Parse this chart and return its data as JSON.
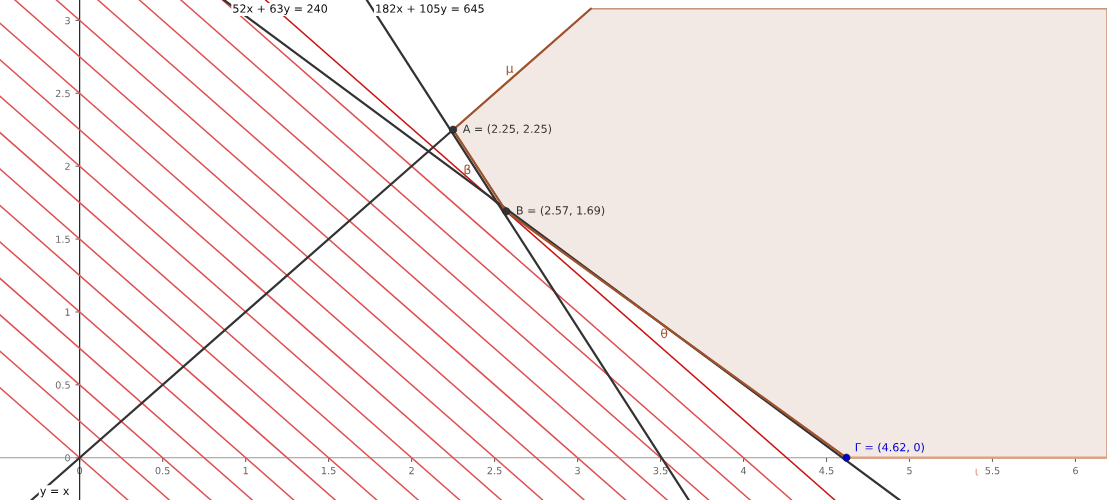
{
  "chart_data": {
    "type": "line",
    "xlim": [
      -0.48,
      6.19
    ],
    "ylim": [
      -0.29,
      3.14
    ],
    "xticks": [
      0,
      0.5,
      1,
      1.5,
      2,
      2.5,
      3,
      3.5,
      4,
      4.5,
      5,
      5.5,
      6
    ],
    "yticks": [
      0,
      0.5,
      1,
      1.5,
      2,
      2.5,
      3
    ],
    "grid": false,
    "legend": false,
    "marker": "none",
    "line_style": "solid",
    "series": [
      {
        "color": "#e05050",
        "x": [
          -0.48,
          0.29
        ],
        "values": [
          0.48,
          -0.29
        ]
      },
      {
        "color": "#e05050",
        "x": [
          -0.48,
          0.54
        ],
        "values": [
          0.73,
          -0.29
        ]
      },
      {
        "color": "#e05050",
        "x": [
          -0.48,
          0.79
        ],
        "values": [
          0.98,
          -0.29
        ]
      },
      {
        "color": "#e05050",
        "x": [
          -0.48,
          1.04
        ],
        "values": [
          1.23,
          -0.29
        ]
      },
      {
        "color": "#e05050",
        "x": [
          -0.48,
          1.29
        ],
        "values": [
          1.48,
          -0.29
        ]
      },
      {
        "color": "#e05050",
        "x": [
          -0.48,
          1.54
        ],
        "values": [
          1.73,
          -0.29
        ]
      },
      {
        "color": "#e05050",
        "x": [
          -0.48,
          1.79
        ],
        "values": [
          1.98,
          -0.29
        ]
      },
      {
        "color": "#e05050",
        "x": [
          -0.48,
          2.04
        ],
        "values": [
          2.23,
          -0.29
        ]
      },
      {
        "color": "#e05050",
        "x": [
          -0.48,
          2.29
        ],
        "values": [
          2.48,
          -0.29
        ]
      },
      {
        "color": "#e05050",
        "x": [
          -0.48,
          2.54
        ],
        "values": [
          2.73,
          -0.29
        ]
      },
      {
        "color": "#e05050",
        "x": [
          -0.48,
          2.79
        ],
        "values": [
          2.98,
          -0.29
        ]
      },
      {
        "color": "#e05050",
        "x": [
          -0.39,
          3.04
        ],
        "values": [
          3.14,
          -0.29
        ]
      },
      {
        "color": "#e05050",
        "x": [
          -0.14,
          3.29
        ],
        "values": [
          3.14,
          -0.29
        ]
      },
      {
        "color": "#e05050",
        "x": [
          0.11,
          3.54
        ],
        "values": [
          3.14,
          -0.29
        ]
      },
      {
        "color": "#e05050",
        "x": [
          0.36,
          3.79
        ],
        "values": [
          3.14,
          -0.29
        ]
      },
      {
        "color": "#e05050",
        "x": [
          0.61,
          4.04
        ],
        "values": [
          3.14,
          -0.29
        ]
      },
      {
        "color": "#e05050",
        "x": [
          0.86,
          4.29
        ],
        "values": [
          3.14,
          -0.29
        ]
      },
      {
        "color": "#cc1010",
        "x": [
          1.12,
          4.55
        ],
        "values": [
          3.14,
          -0.29
        ]
      },
      {
        "name": "y = x",
        "color": "#333333",
        "x": [
          -0.29,
          2.25
        ],
        "values": [
          -0.29,
          2.25
        ]
      },
      {
        "name": "52x + 63y = 240",
        "color": "#333333",
        "x": [
          0.87,
          4.94
        ],
        "values": [
          3.14,
          -0.29
        ]
      },
      {
        "name": "182x + 105y = 645",
        "color": "#333333",
        "x": [
          1.73,
          3.67
        ],
        "values": [
          3.14,
          -0.29
        ]
      },
      {
        "name": "μ",
        "color": "#a0522d",
        "x": [
          2.25,
          3.08
        ],
        "values": [
          2.25,
          3.08
        ]
      },
      {
        "name": "β",
        "color": "#a0522d",
        "x": [
          2.25,
          2.57
        ],
        "values": [
          2.25,
          1.69
        ]
      },
      {
        "name": "θ",
        "color": "#a0522d",
        "x": [
          2.57,
          4.62
        ],
        "values": [
          1.69,
          0
        ]
      },
      {
        "name": "ι",
        "color": "#e0a080",
        "x": [
          4.62,
          6.19
        ],
        "values": [
          0,
          0
        ]
      },
      {
        "type": "scatter",
        "color": "#333333",
        "marker": "circle",
        "x": [
          2.25,
          2.57
        ],
        "values": [
          2.25,
          1.69
        ],
        "value_labels": [
          "A = (2.25, 2.25)",
          "B = (2.57, 1.69)"
        ]
      },
      {
        "type": "scatter",
        "color": "#0000cc",
        "marker": "circle",
        "x": [
          4.62
        ],
        "values": [
          0
        ],
        "value_labels": [
          "Γ = (4.62, 0)"
        ]
      }
    ]
  }
}
